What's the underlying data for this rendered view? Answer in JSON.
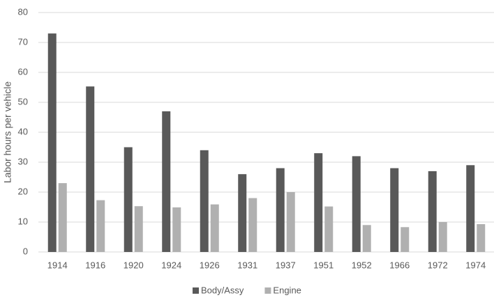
{
  "chart_data": {
    "type": "bar",
    "y_label": "Labor hours per vehicle",
    "categories": [
      "1914",
      "1916",
      "1920",
      "1924",
      "1926",
      "1931",
      "1937",
      "1951",
      "1952",
      "1966",
      "1972",
      "1974"
    ],
    "series": [
      {
        "name": "Body/Assy",
        "color": "#595959",
        "values": [
          73,
          55.3,
          35,
          47,
          34,
          26,
          28,
          33,
          32,
          28,
          27,
          29
        ]
      },
      {
        "name": "Engine",
        "color": "#b0b0b0",
        "values": [
          23,
          17.3,
          15.3,
          14.9,
          15.9,
          18,
          20,
          15.2,
          9,
          8.3,
          10,
          9.3
        ]
      }
    ],
    "ylim": [
      0,
      80
    ],
    "yticks": [
      0,
      10,
      20,
      30,
      40,
      50,
      60,
      70,
      80
    ],
    "grid": true,
    "legend": "bottom"
  }
}
